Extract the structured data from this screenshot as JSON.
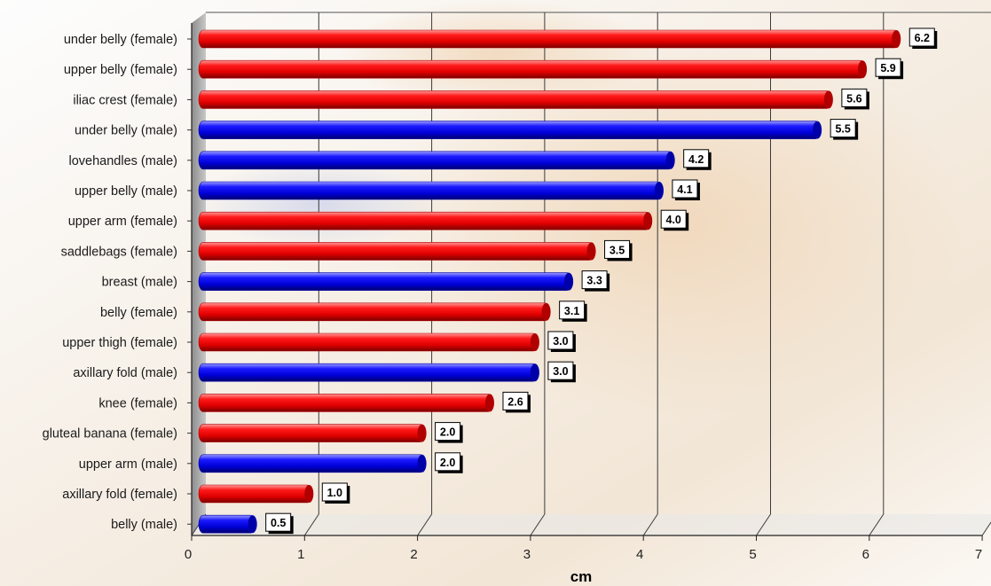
{
  "chart_data": {
    "type": "bar",
    "orientation": "horizontal",
    "style": "3d-cylinder",
    "categories": [
      "under belly (female)",
      "upper belly (female)",
      "iliac crest (female)",
      "under belly (male)",
      "lovehandles (male)",
      "upper belly (male)",
      "upper arm (female)",
      "saddlebags (female)",
      "breast (male)",
      "belly (female)",
      "upper thigh (female)",
      "axillary fold  (male)",
      "knee (female)",
      "gluteal banana (female)",
      "upper arm (male)",
      "axillary fold  (female)",
      "belly (male)"
    ],
    "values": [
      6.2,
      5.9,
      5.6,
      5.5,
      4.2,
      4.1,
      4.0,
      3.5,
      3.3,
      3.1,
      3.0,
      3.0,
      2.6,
      2.0,
      2.0,
      1.0,
      0.5
    ],
    "value_labels": [
      "6.2",
      "5.9",
      "5.6",
      "5.5",
      "4.2",
      "4.1",
      "4.0",
      "3.5",
      "3.3",
      "3.1",
      "3.0",
      "3.0",
      "2.6",
      "2.0",
      "2.0",
      "1.0",
      "0.5"
    ],
    "group": [
      "female",
      "female",
      "female",
      "male",
      "male",
      "male",
      "female",
      "female",
      "male",
      "female",
      "female",
      "male",
      "female",
      "female",
      "male",
      "female",
      "male"
    ],
    "colors": {
      "female": "#e80000",
      "male": "#0000e0"
    },
    "xlabel": "cm",
    "ylabel": "",
    "title": "",
    "xlim": [
      0,
      7
    ],
    "xticks": [
      "0",
      "1",
      "2",
      "3",
      "4",
      "5",
      "6",
      "7"
    ],
    "grid": true,
    "legend": "none"
  }
}
